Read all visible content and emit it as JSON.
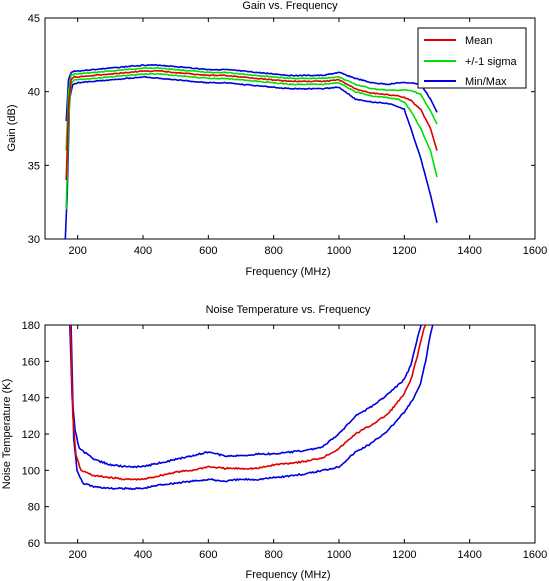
{
  "chart_data": [
    {
      "type": "line",
      "title": "Gain vs. Frequency",
      "xlabel": "Frequency (MHz)",
      "ylabel": "Gain (dB)",
      "xlim": [
        100,
        1600
      ],
      "ylim": [
        30,
        45
      ],
      "xticks": [
        "200",
        "400",
        "600",
        "800",
        "1000",
        "1200",
        "1400",
        "1600"
      ],
      "yticks": [
        "30",
        "35",
        "40",
        "45"
      ],
      "legend": {
        "position": "top-right",
        "entries": [
          "Mean",
          "+/-1 sigma",
          "Min/Max"
        ]
      },
      "colors": {
        "mean": "#e00000",
        "sigma": "#00e000",
        "minmax": "#0000e0"
      },
      "series": [
        {
          "name": "Mean",
          "color": "#e00000",
          "x": [
            165,
            172,
            180,
            190,
            200,
            250,
            300,
            350,
            400,
            450,
            500,
            550,
            600,
            650,
            700,
            750,
            800,
            850,
            900,
            950,
            1000,
            1050,
            1100,
            1150,
            1180,
            1200,
            1220,
            1250,
            1280,
            1300
          ],
          "y": [
            34,
            39,
            40.8,
            41.0,
            41.0,
            41.1,
            41.2,
            41.3,
            41.4,
            41.4,
            41.3,
            41.2,
            41.1,
            41.1,
            41.0,
            40.9,
            40.8,
            40.7,
            40.7,
            40.7,
            40.8,
            40.2,
            39.9,
            39.8,
            39.7,
            39.6,
            39.4,
            38.8,
            37.5,
            36
          ]
        },
        {
          "name": "+/-1 sigma",
          "color": "#00e000",
          "x": [
            165,
            172,
            180,
            190,
            200,
            250,
            300,
            350,
            400,
            450,
            500,
            550,
            600,
            650,
            700,
            750,
            800,
            850,
            900,
            950,
            1000,
            1050,
            1100,
            1150,
            1180,
            1200,
            1220,
            1250,
            1280,
            1300
          ],
          "y": [
            36,
            40,
            41.1,
            41.2,
            41.2,
            41.3,
            41.4,
            41.5,
            41.6,
            41.6,
            41.5,
            41.4,
            41.3,
            41.3,
            41.2,
            41.1,
            41.0,
            40.9,
            40.9,
            40.9,
            41.0,
            40.5,
            40.2,
            40.1,
            40.1,
            40.1,
            40.1,
            39.8,
            38.7,
            37.8
          ]
        },
        {
          "name": "+/-1 sigma (lower)",
          "color": "#00e000",
          "x": [
            165,
            172,
            180,
            190,
            200,
            250,
            300,
            350,
            400,
            450,
            500,
            550,
            600,
            650,
            700,
            750,
            800,
            850,
            900,
            950,
            1000,
            1050,
            1100,
            1150,
            1180,
            1200,
            1220,
            1250,
            1280,
            1300
          ],
          "y": [
            32,
            38,
            40.6,
            40.8,
            40.8,
            40.9,
            41.0,
            41.1,
            41.2,
            41.2,
            41.1,
            41.0,
            40.9,
            40.9,
            40.8,
            40.7,
            40.6,
            40.5,
            40.5,
            40.5,
            40.6,
            40.0,
            39.7,
            39.6,
            39.5,
            39.3,
            38.7,
            37.5,
            36.0,
            34.2
          ]
        },
        {
          "name": "Min/Max",
          "color": "#0000e0",
          "x": [
            165,
            172,
            180,
            190,
            200,
            250,
            300,
            350,
            400,
            450,
            500,
            550,
            600,
            650,
            700,
            750,
            800,
            850,
            900,
            950,
            1000,
            1050,
            1100,
            1150,
            1180,
            1200,
            1220,
            1250,
            1280,
            1300
          ],
          "y": [
            38,
            40.8,
            41.3,
            41.4,
            41.4,
            41.5,
            41.6,
            41.7,
            41.8,
            41.8,
            41.7,
            41.6,
            41.5,
            41.5,
            41.4,
            41.3,
            41.2,
            41.1,
            41.1,
            41.1,
            41.3,
            40.9,
            40.6,
            40.5,
            40.6,
            40.6,
            40.6,
            40.5,
            39.5,
            38.6
          ]
        },
        {
          "name": "Min/Max (lower)",
          "color": "#0000e0",
          "x": [
            162,
            168,
            175,
            185,
            200,
            250,
            300,
            350,
            400,
            450,
            500,
            550,
            600,
            650,
            700,
            750,
            800,
            850,
            900,
            950,
            1000,
            1050,
            1100,
            1150,
            1180,
            1200,
            1220,
            1250,
            1280,
            1300
          ],
          "y": [
            30,
            33,
            39.5,
            40.5,
            40.6,
            40.7,
            40.8,
            40.9,
            41.0,
            40.9,
            40.8,
            40.7,
            40.6,
            40.6,
            40.5,
            40.4,
            40.3,
            40.2,
            40.2,
            40.2,
            40.3,
            39.5,
            39.3,
            39.2,
            39.0,
            38.8,
            37.5,
            35.5,
            33.0,
            31.1
          ]
        }
      ]
    },
    {
      "type": "line",
      "title": "Noise Temperature vs. Frequency",
      "xlabel": "Frequency (MHz)",
      "ylabel": "Noise Temperature (K)",
      "xlim": [
        100,
        1600
      ],
      "ylim": [
        60,
        180
      ],
      "xticks": [
        "200",
        "400",
        "600",
        "800",
        "1000",
        "1200",
        "1400",
        "1600"
      ],
      "yticks": [
        "60",
        "80",
        "100",
        "120",
        "140",
        "160",
        "180"
      ],
      "colors": {
        "mean": "#e00000",
        "minmax": "#0000e0"
      },
      "series": [
        {
          "name": "Mean",
          "color": "#e00000",
          "x": [
            178,
            185,
            195,
            210,
            250,
            300,
            350,
            400,
            450,
            500,
            550,
            600,
            650,
            700,
            750,
            800,
            850,
            900,
            950,
            1000,
            1050,
            1100,
            1150,
            1200,
            1220,
            1240,
            1260,
            1270
          ],
          "y": [
            180,
            130,
            108,
            100,
            97,
            96,
            95,
            95,
            97,
            99,
            100,
            102,
            101,
            101,
            101,
            103,
            104,
            105,
            107,
            112,
            120,
            125,
            131,
            142,
            150,
            163,
            178,
            182
          ]
        },
        {
          "name": "Min/Max",
          "color": "#0000e0",
          "x": [
            176,
            183,
            192,
            205,
            250,
            300,
            350,
            400,
            450,
            500,
            550,
            600,
            650,
            700,
            750,
            800,
            850,
            900,
            950,
            1000,
            1050,
            1100,
            1150,
            1200,
            1220,
            1230,
            1245,
            1255
          ],
          "y": [
            180,
            140,
            122,
            112,
            106,
            103,
            102,
            102,
            104,
            106,
            108,
            110,
            108,
            108,
            109,
            109,
            110,
            111,
            113,
            120,
            130,
            135,
            142,
            150,
            158,
            165,
            176,
            182
          ]
        },
        {
          "name": "Min/Max (lower)",
          "color": "#0000e0",
          "x": [
            180,
            188,
            198,
            215,
            250,
            300,
            350,
            400,
            450,
            500,
            550,
            600,
            650,
            700,
            750,
            800,
            850,
            900,
            950,
            1000,
            1050,
            1100,
            1150,
            1200,
            1230,
            1250,
            1265,
            1280,
            1290
          ],
          "y": [
            180,
            118,
            100,
            93,
            91,
            90,
            90,
            90,
            92,
            93,
            94,
            95,
            94,
            95,
            95,
            96,
            97,
            98,
            100,
            102,
            110,
            115,
            122,
            132,
            140,
            148,
            160,
            175,
            182
          ]
        }
      ]
    }
  ]
}
